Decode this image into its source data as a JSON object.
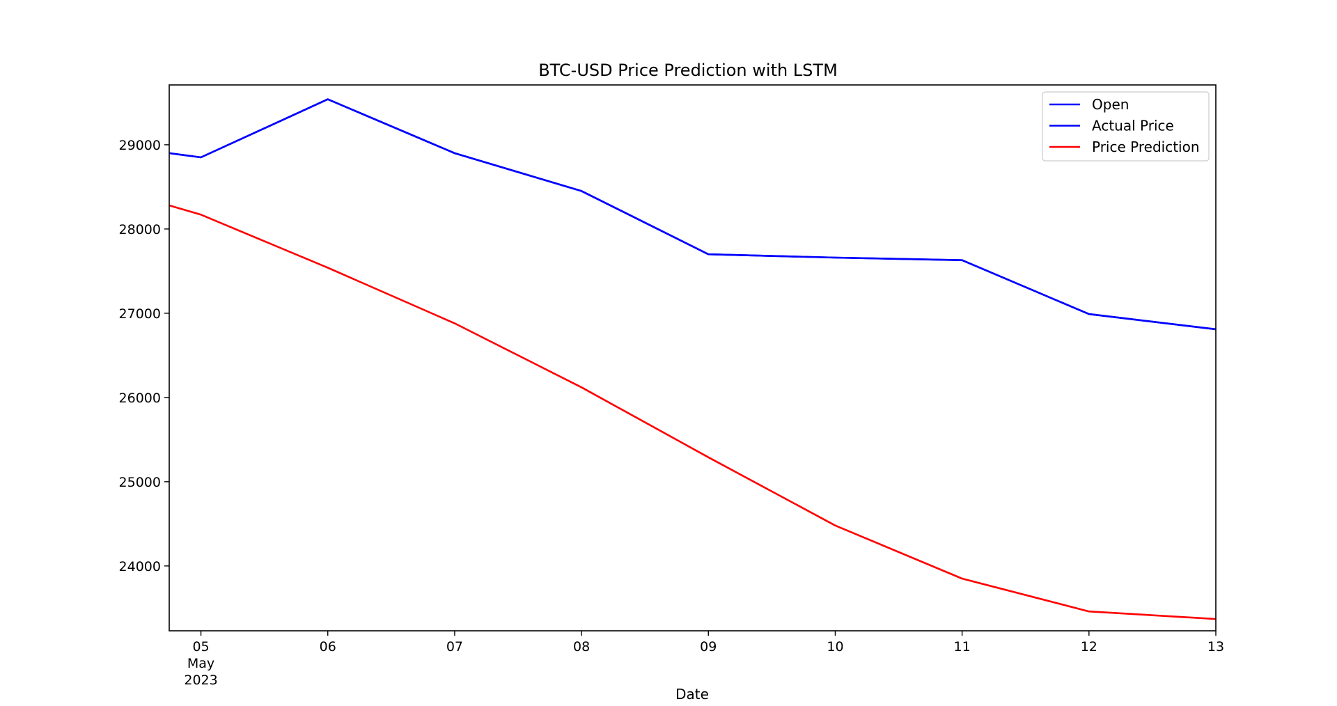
{
  "chart_data": {
    "type": "line",
    "title": "BTC-USD Price Prediction with LSTM",
    "xlabel": "Date",
    "ylabel": "",
    "x": [
      "2023-05-04T18:00",
      "2023-05-05",
      "2023-05-06",
      "2023-05-07",
      "2023-05-08",
      "2023-05-09",
      "2023-05-10",
      "2023-05-11",
      "2023-05-12",
      "2023-05-13"
    ],
    "xlim": [
      "2023-05-04T18:00",
      "2023-05-13"
    ],
    "ylim": [
      23230,
      29710
    ],
    "x_ticks": [
      {
        "date": "2023-05-05",
        "lines": [
          "05",
          "May",
          "2023"
        ]
      },
      {
        "date": "2023-05-06",
        "lines": [
          "06"
        ]
      },
      {
        "date": "2023-05-07",
        "lines": [
          "07"
        ]
      },
      {
        "date": "2023-05-08",
        "lines": [
          "08"
        ]
      },
      {
        "date": "2023-05-09",
        "lines": [
          "09"
        ]
      },
      {
        "date": "2023-05-10",
        "lines": [
          "10"
        ]
      },
      {
        "date": "2023-05-11",
        "lines": [
          "11"
        ]
      },
      {
        "date": "2023-05-12",
        "lines": [
          "12"
        ]
      },
      {
        "date": "2023-05-13",
        "lines": [
          "13"
        ]
      }
    ],
    "y_ticks": [
      24000,
      25000,
      26000,
      27000,
      28000,
      29000
    ],
    "grid": false,
    "legend_position": "top-right",
    "series": [
      {
        "name": "Open",
        "color": "#0000ff",
        "values": [
          28900,
          28850,
          29540,
          28900,
          28450,
          27700,
          27660,
          27630,
          26990,
          26810
        ]
      },
      {
        "name": "Actual Price",
        "color": "#0000ff",
        "values": [
          28900,
          28850,
          29540,
          28900,
          28450,
          27700,
          27660,
          27630,
          26990,
          26810
        ]
      },
      {
        "name": "Price Prediction",
        "color": "#ff0000",
        "values": [
          28280,
          28170,
          27540,
          26880,
          26120,
          25290,
          24480,
          23850,
          23460,
          23370
        ]
      }
    ]
  }
}
